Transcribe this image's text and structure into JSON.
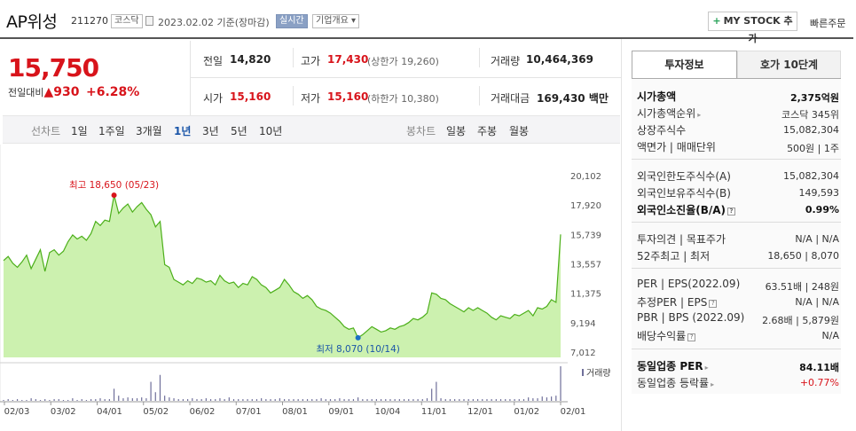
{
  "header": {
    "stock_name": "AP위성",
    "stock_code": "211270",
    "market_tag": "코스닥",
    "date_text": "2023.02.02  기준(장마감)",
    "realtime_tag": "실시간",
    "company_tag": "기업개요 ▾",
    "my_stock_label": "MY STOCK 추가",
    "quick_order_label": "빠른주문"
  },
  "price": {
    "current": "15,750",
    "change_label": "전일대비",
    "change_arrow": "▲",
    "change_value": "930",
    "change_pct": "+6.28%"
  },
  "quotes": {
    "prev_label": "전일",
    "prev": "14,820",
    "high_label": "고가",
    "high": "17,430",
    "upper_limit": "(상한가 19,260)",
    "volume_label": "거래량",
    "volume": "10,464,369",
    "open_label": "시가",
    "open": "15,160",
    "low_label": "저가",
    "low": "15,160",
    "lower_limit": "(하한가 10,380)",
    "amount_label": "거래대금",
    "amount": "169,430 백만"
  },
  "period_tabs": {
    "line_label": "선차트",
    "line": [
      "1일",
      "1주일",
      "3개월",
      "1년",
      "3년",
      "5년",
      "10년"
    ],
    "active": "1년",
    "candle_label": "봉차트",
    "candle": [
      "일봉",
      "주봉",
      "월봉"
    ]
  },
  "chart_data": {
    "type": "area",
    "title": "",
    "y_ticks": [
      "20,102",
      "17,920",
      "15,739",
      "13,557",
      "11,375",
      "9,194",
      "7,012"
    ],
    "ylim": [
      7012,
      20102
    ],
    "x_ticks": [
      "02/03",
      "03/02",
      "04/01",
      "05/02",
      "06/02",
      "07/01",
      "08/01",
      "09/01",
      "10/04",
      "11/01",
      "12/01",
      "01/02",
      "02/01"
    ],
    "max_label": "최고 18,650 (05/23)",
    "min_label": "최저 8,070 (10/14)",
    "volume_label": "거래량",
    "series": [
      {
        "values": [
          13800,
          14100,
          13600,
          13300,
          13700,
          14200,
          13200,
          13900,
          14600,
          13000,
          14400,
          14600,
          14200,
          14500,
          15200,
          15700,
          15400,
          15600,
          15300,
          15800,
          16700,
          16400,
          16800,
          16700,
          18650,
          17300,
          17700,
          18000,
          17400,
          17800,
          18100,
          17600,
          17200,
          16300,
          16700,
          13500,
          13300,
          12400,
          12200,
          12000,
          12300,
          12100,
          12500,
          12400,
          12200,
          12300,
          12000,
          12700,
          12300,
          12100,
          12200,
          11800,
          12100,
          12000,
          12600,
          12400,
          12000,
          11800,
          11400,
          11600,
          11800,
          12400,
          12000,
          11500,
          11300,
          11000,
          11200,
          10900,
          10400,
          10200,
          10100,
          9900,
          9600,
          9300,
          8900,
          8700,
          8800,
          8070,
          8300,
          8600,
          8900,
          8700,
          8500,
          8600,
          8800,
          8700,
          8900,
          9000,
          9200,
          9500,
          9400,
          9600,
          9900,
          11400,
          11300,
          11000,
          10900,
          10600,
          10400,
          10200,
          10000,
          10300,
          10100,
          10300,
          10100,
          9900,
          9600,
          9400,
          9700,
          9600,
          9500,
          9800,
          9700,
          9900,
          10100,
          9700,
          10300,
          10200,
          10400,
          10900,
          10700,
          15739
        ]
      }
    ],
    "volume": [
      1,
      2,
      1,
      2,
      1,
      1,
      3,
      2,
      1,
      2,
      1,
      2,
      2,
      1,
      1,
      3,
      1,
      2,
      1,
      2,
      2,
      3,
      2,
      2,
      14,
      6,
      3,
      4,
      3,
      3,
      4,
      3,
      22,
      10,
      30,
      6,
      4,
      3,
      2,
      2,
      2,
      3,
      2,
      2,
      3,
      2,
      2,
      3,
      2,
      4,
      2,
      2,
      2,
      2,
      2,
      2,
      3,
      2,
      2,
      2,
      3,
      2,
      2,
      2,
      2,
      2,
      2,
      2,
      2,
      3,
      2,
      2,
      2,
      3,
      2,
      2,
      2,
      4,
      2,
      2,
      2,
      2,
      2,
      2,
      2,
      2,
      2,
      2,
      2,
      2,
      2,
      2,
      3,
      14,
      22,
      3,
      2,
      2,
      2,
      2,
      2,
      2,
      2,
      2,
      2,
      2,
      2,
      2,
      2,
      2,
      2,
      2,
      2,
      2,
      4,
      3,
      3,
      5,
      4,
      5,
      6,
      40
    ]
  },
  "invest_tabs": {
    "active": "투자정보",
    "other": "호가 10단계"
  },
  "invest_info": {
    "mcap_label": "시가총액",
    "mcap": "2,375억원",
    "mcap_rank_label": "시가총액순위",
    "mcap_rank": "코스닥 345위",
    "shares_label": "상장주식수",
    "shares": "15,082,304",
    "par_label": "액면가 | 매매단위",
    "par": "500원 | 1주",
    "foreign_limit_label": "외국인한도주식수(A)",
    "foreign_limit": "15,082,304",
    "foreign_hold_label": "외국인보유주식수(B)",
    "foreign_hold": "149,593",
    "foreign_rate_label": "외국인소진율(B/A)",
    "foreign_rate": "0.99%",
    "opinion_label": "투자의견 | 목표주가",
    "opinion": "N/A | N/A",
    "w52_label": "52주최고 | 최저",
    "w52": "18,650 | 8,070",
    "per_label": "PER | EPS(2022.09)",
    "per": "63.51배 | 248원",
    "est_per_label": "추정PER | EPS",
    "est_per": "N/A | N/A",
    "pbr_label": "PBR | BPS (2022.09)",
    "pbr": "2.68배 | 5,879원",
    "div_label": "배당수익률",
    "div": "N/A",
    "sector_per_label": "동일업종 PER",
    "sector_per": "84.11배",
    "sector_rate_label": "동일업종 등락률",
    "sector_rate": "+0.77%"
  },
  "colors": {
    "up": "#d8141b",
    "line": "#4caf1a",
    "fill": "#c6efa6",
    "active_tab": "#1a55a8"
  }
}
